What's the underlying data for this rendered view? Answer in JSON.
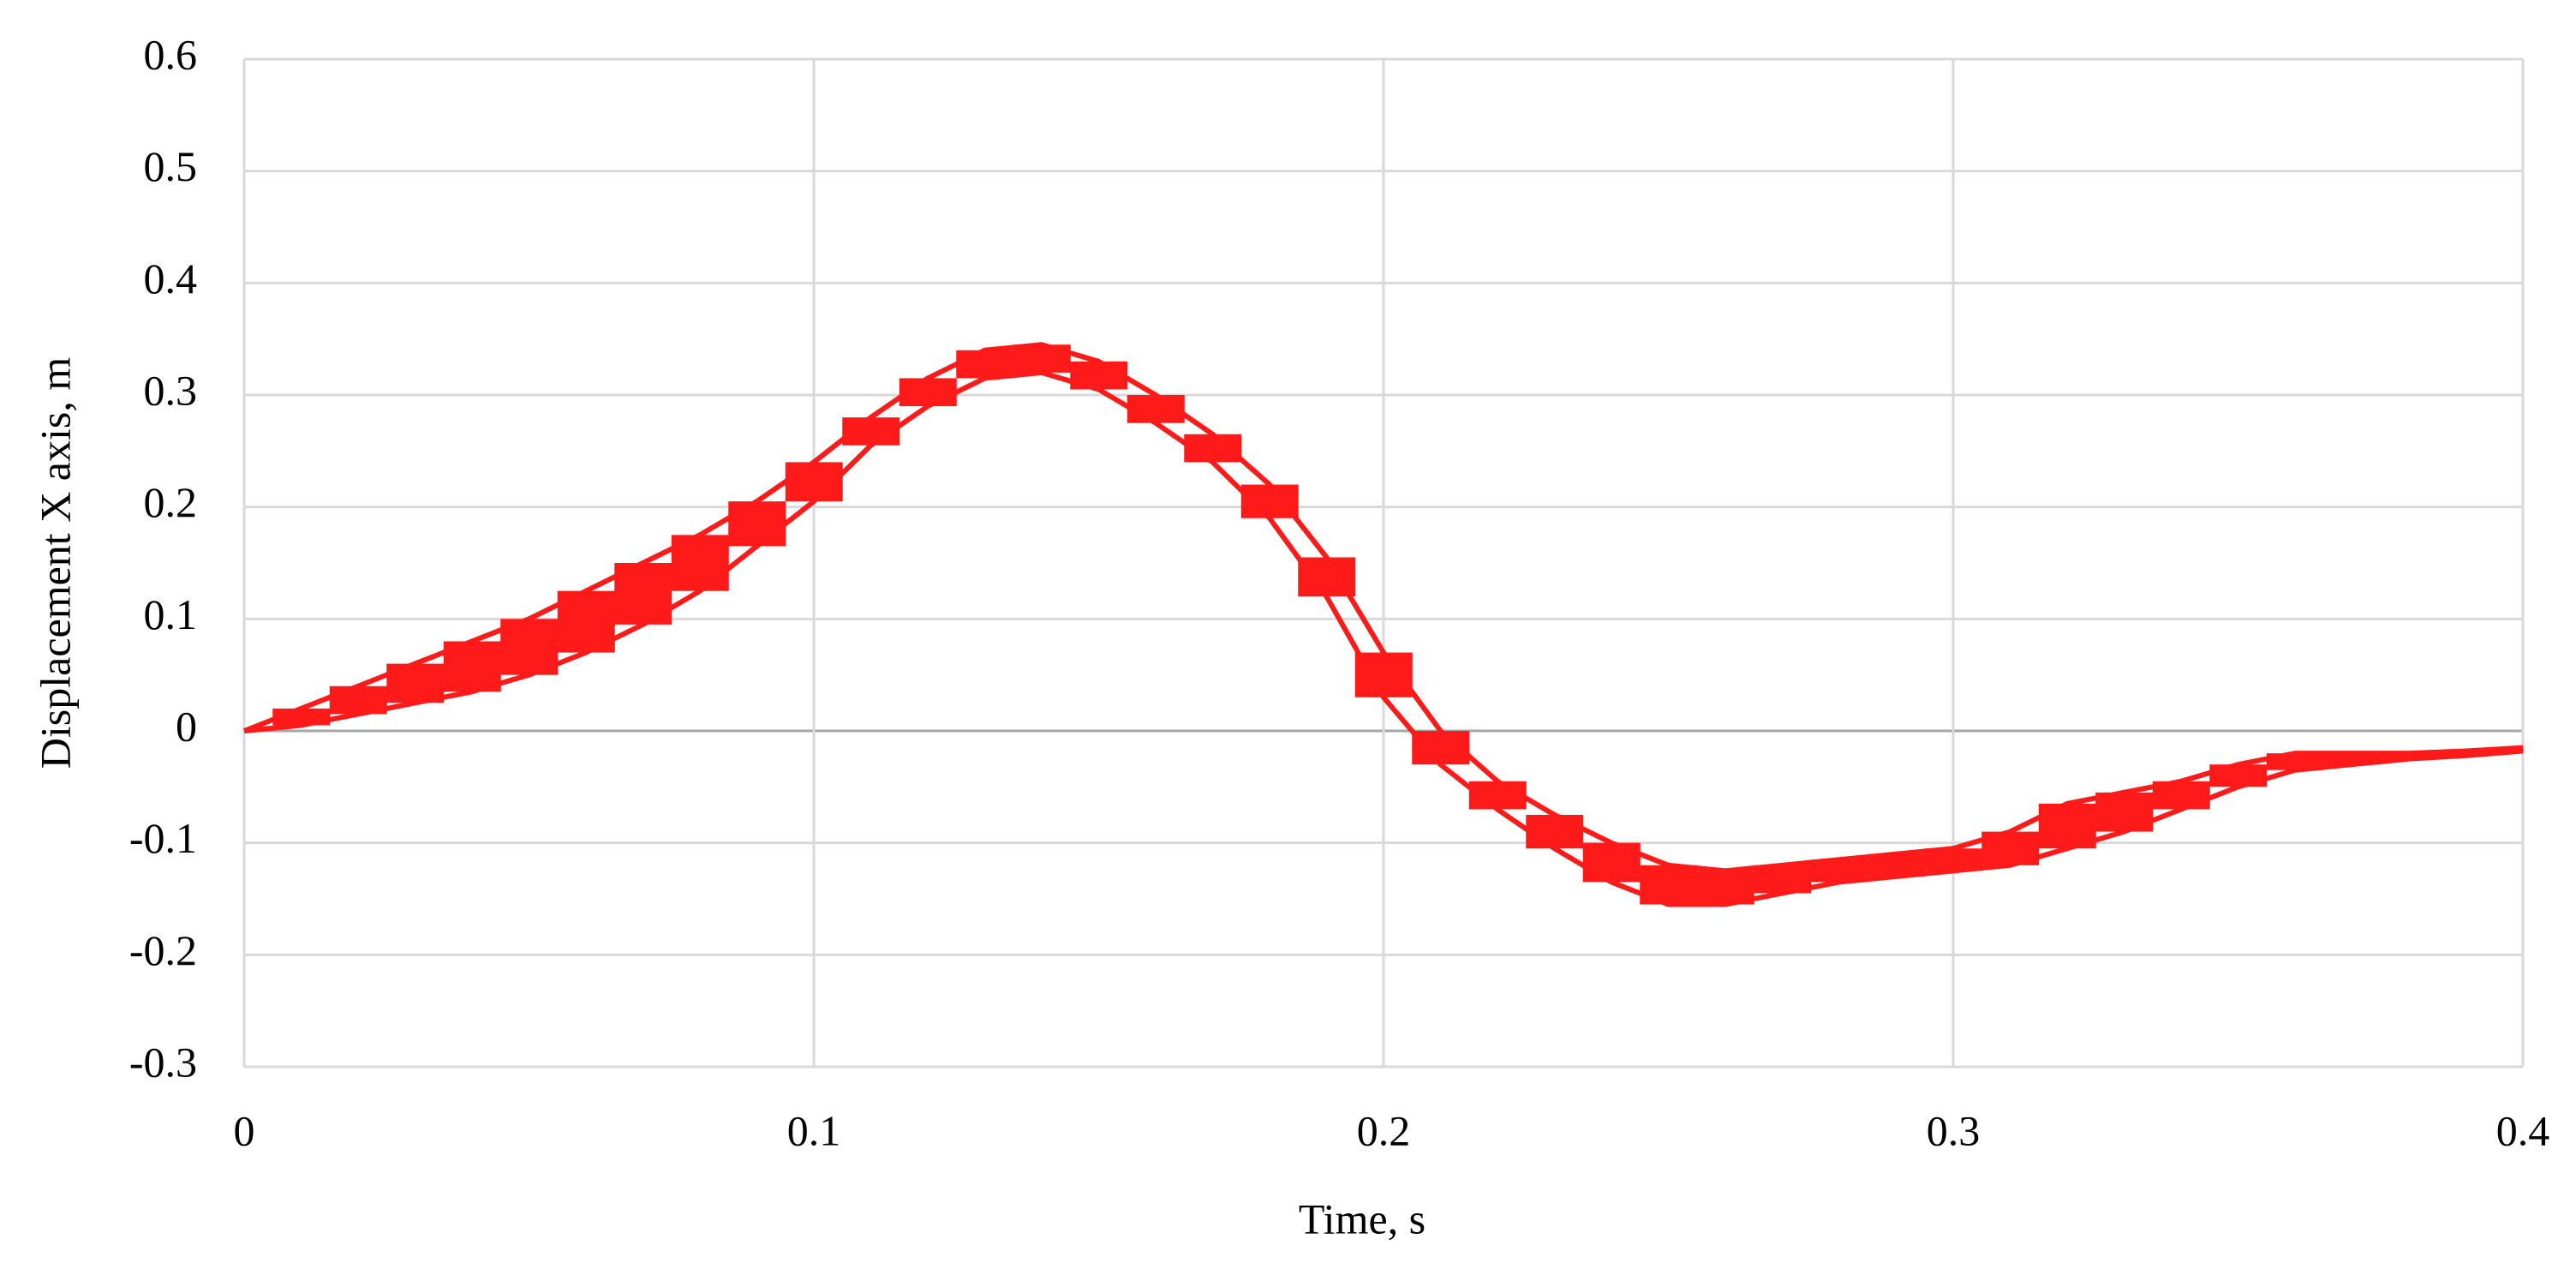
{
  "chart_data": {
    "type": "band",
    "xlabel": "Time, s",
    "ylabel": "Displacement X axis, m",
    "x": [
      0,
      0.01,
      0.02,
      0.03,
      0.04,
      0.05,
      0.06,
      0.07,
      0.08,
      0.09,
      0.1,
      0.11,
      0.12,
      0.13,
      0.14,
      0.15,
      0.16,
      0.17,
      0.18,
      0.19,
      0.2,
      0.21,
      0.22,
      0.23,
      0.24,
      0.25,
      0.26,
      0.27,
      0.28,
      0.29,
      0.3,
      0.31,
      0.32,
      0.33,
      0.34,
      0.35,
      0.36,
      0.37,
      0.38,
      0.39,
      0.4
    ],
    "series": [
      {
        "color": "#ff1a1a",
        "values": [
          0,
          0.02,
          0.04,
          0.06,
          0.08,
          0.1,
          0.125,
          0.15,
          0.175,
          0.205,
          0.24,
          0.28,
          0.315,
          0.34,
          0.345,
          0.33,
          0.3,
          0.265,
          0.22,
          0.155,
          0.07,
          0.0,
          -0.045,
          -0.075,
          -0.1,
          -0.12,
          -0.125,
          -0.12,
          -0.115,
          -0.11,
          -0.105,
          -0.09,
          -0.065,
          -0.055,
          -0.045,
          -0.03,
          -0.02,
          -0.02,
          -0.02,
          -0.018,
          -0.015
        ]
      },
      {
        "color": "#ff1a1a",
        "values": [
          0,
          0.005,
          0.015,
          0.025,
          0.035,
          0.05,
          0.07,
          0.095,
          0.125,
          0.165,
          0.205,
          0.255,
          0.29,
          0.315,
          0.32,
          0.305,
          0.275,
          0.24,
          0.19,
          0.12,
          0.03,
          -0.03,
          -0.07,
          -0.105,
          -0.135,
          -0.155,
          -0.155,
          -0.145,
          -0.135,
          -0.13,
          -0.125,
          -0.12,
          -0.105,
          -0.09,
          -0.07,
          -0.05,
          -0.035,
          -0.03,
          -0.025,
          -0.022,
          -0.018
        ]
      }
    ],
    "xlim": [
      0,
      0.4
    ],
    "xticks": [
      0,
      0.1,
      0.2,
      0.3,
      0.4
    ],
    "ylim": [
      -0.3,
      0.6
    ],
    "yticks": [
      -0.3,
      -0.2,
      -0.1,
      0,
      0.1,
      0.2,
      0.3,
      0.4,
      0.5,
      0.6
    ],
    "grid": true
  }
}
